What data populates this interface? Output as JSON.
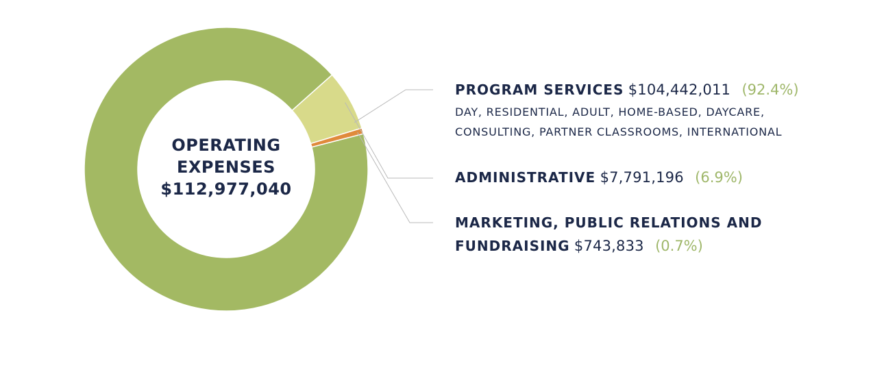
{
  "colors": {
    "program": "#a3b963",
    "administrative": "#d8da8a",
    "marketing": "#e08a3c",
    "text": "#1b2747",
    "percent": "#9fb76a",
    "leader": "#b9b9b9"
  },
  "chart_data": {
    "type": "pie",
    "variant": "donut",
    "center_label": [
      "OPERATING",
      "EXPENSES",
      "$112,977,040"
    ],
    "total": 112977040,
    "slices": [
      {
        "label": "PROGRAM SERVICES",
        "value": 104442011,
        "value_text": "$104,442,011",
        "percent": 92.4,
        "percent_text": "(92.4%)",
        "detail": [
          "DAY, RESIDENTIAL, ADULT, HOME-BASED, DAYCARE,",
          "CONSULTING, PARTNER CLASSROOMS, INTERNATIONAL"
        ],
        "color": "#a3b963"
      },
      {
        "label": "ADMINISTRATIVE",
        "value": 7791196,
        "value_text": "$7,791,196",
        "percent": 6.9,
        "percent_text": "(6.9%)",
        "color": "#d8da8a"
      },
      {
        "label_lines": [
          "MARKETING, PUBLIC RELATIONS AND",
          "FUNDRAISING"
        ],
        "value": 743833,
        "value_text": "$743,833",
        "percent": 0.7,
        "percent_text": "(0.7%)",
        "color": "#e08a3c"
      }
    ],
    "legend": "right"
  }
}
